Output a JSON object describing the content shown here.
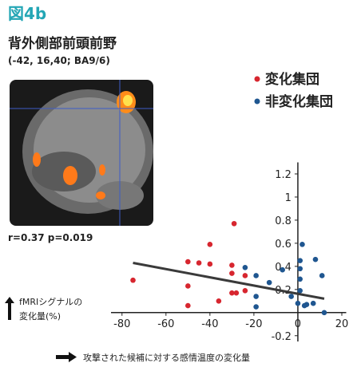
{
  "figure_label": "図4b",
  "region_title": "背外側部前頭前野",
  "coordinates": "(-42, 16,40; BA9/6)",
  "stats": "r=0.37  p=0.019",
  "chart_data": {
    "type": "scatter",
    "y_label": [
      "fMRIシグナルの",
      "変化量(%)"
    ],
    "x_label": "攻撃された候補に対する感情温度の変化量",
    "xlim": [
      -85,
      22
    ],
    "ylim": [
      -0.25,
      1.3
    ],
    "xticks": [
      -80,
      -60,
      -40,
      -20,
      0,
      20
    ],
    "yticks": [
      -0.2,
      0.2,
      0.4,
      0.6,
      0.8,
      1,
      1.2
    ],
    "legend_position": "upper right",
    "series": [
      {
        "name": "変化集団",
        "color": "#d7262f",
        "x": [
          -75,
          -50,
          -45,
          -40,
          -40,
          -29,
          -30,
          -30,
          -36,
          -50,
          -50,
          -30,
          -28,
          -24,
          -24
        ],
        "values": [
          0.28,
          0.44,
          0.43,
          0.42,
          0.59,
          0.77,
          0.41,
          0.34,
          0.1,
          0.23,
          0.06,
          0.17,
          0.17,
          0.32,
          0.19
        ]
      },
      {
        "name": "非変化集団",
        "color": "#1f5690",
        "x": [
          -24,
          -19,
          -19,
          -19,
          -13,
          -7,
          -3,
          1,
          1,
          1,
          1,
          3,
          4,
          7,
          11,
          8,
          0,
          2,
          12
        ],
        "values": [
          0.39,
          0.32,
          0.14,
          0.05,
          0.26,
          0.37,
          0.14,
          0.45,
          0.38,
          0.29,
          0.19,
          0.06,
          0.07,
          0.08,
          0.32,
          0.46,
          0.08,
          0.59,
          0.0
        ]
      }
    ],
    "trendline": {
      "color": "#3a3a3a",
      "x": [
        -75,
        12
      ],
      "values": [
        0.43,
        0.12
      ]
    }
  }
}
